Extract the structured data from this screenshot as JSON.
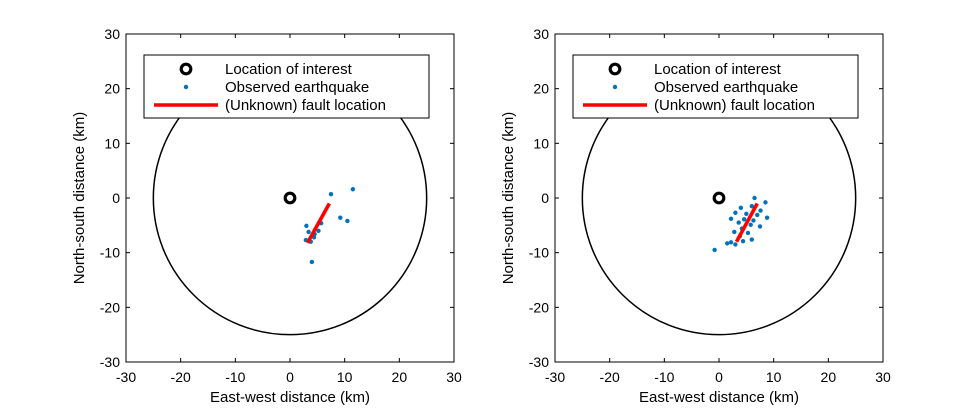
{
  "chart_data": [
    {
      "type": "scatter",
      "xlabel": "East-west distance (km)",
      "ylabel": "North-south distance (km)",
      "xlim": [
        -30,
        30
      ],
      "ylim": [
        -30,
        30
      ],
      "xticks": [
        -30,
        -20,
        -10,
        0,
        10,
        20,
        30
      ],
      "yticks": [
        -30,
        -20,
        -10,
        0,
        10,
        20,
        30
      ],
      "xtick_labels": [
        "-30",
        "-20",
        "-10",
        "0",
        "10",
        "20",
        "30"
      ],
      "ytick_labels": [
        "-30",
        "-20",
        "-10",
        "0",
        "10",
        "20",
        "30"
      ],
      "grid": false,
      "legend_position": "top-left",
      "legend": [
        {
          "label": "Location of interest",
          "marker": "circle-open",
          "color": "#000000"
        },
        {
          "label": "Observed earthquake",
          "marker": "dot",
          "color": "#0072BD"
        },
        {
          "label": "(Unknown) fault location",
          "marker": "line",
          "color": "#ff0000"
        }
      ],
      "region_circle": {
        "center": [
          0,
          0
        ],
        "radius": 25,
        "color": "#000000"
      },
      "location_of_interest": {
        "x": 0,
        "y": 0,
        "color": "#000000"
      },
      "fault": {
        "x1": 3.2,
        "y1": -8.2,
        "x2": 7.2,
        "y2": -1.0,
        "color": "#ff0000"
      },
      "earthquakes": {
        "color": "#0072BD",
        "points": [
          [
            7.5,
            0.7
          ],
          [
            11.5,
            1.6
          ],
          [
            9.2,
            -3.6
          ],
          [
            10.5,
            -4.2
          ],
          [
            3.0,
            -5.1
          ],
          [
            3.4,
            -6.2
          ],
          [
            4.5,
            -6.6
          ],
          [
            5.2,
            -6.0
          ],
          [
            2.9,
            -7.7
          ],
          [
            3.8,
            -8.0
          ],
          [
            4.0,
            -11.7
          ],
          [
            4.4,
            -7.2
          ],
          [
            5.7,
            -4.6
          ]
        ]
      }
    },
    {
      "type": "scatter",
      "xlabel": "East-west distance (km)",
      "ylabel": "North-south distance (km)",
      "xlim": [
        -30,
        30
      ],
      "ylim": [
        -30,
        30
      ],
      "xticks": [
        -30,
        -20,
        -10,
        0,
        10,
        20,
        30
      ],
      "yticks": [
        -30,
        -20,
        -10,
        0,
        10,
        20,
        30
      ],
      "xtick_labels": [
        "-30",
        "-20",
        "-10",
        "0",
        "10",
        "20",
        "30"
      ],
      "ytick_labels": [
        "-30",
        "-20",
        "-10",
        "0",
        "10",
        "20",
        "30"
      ],
      "grid": false,
      "legend_position": "top-left",
      "legend": [
        {
          "label": "Location of interest",
          "marker": "circle-open",
          "color": "#000000"
        },
        {
          "label": "Observed earthquake",
          "marker": "dot",
          "color": "#0072BD"
        },
        {
          "label": "(Unknown) fault location",
          "marker": "line",
          "color": "#ff0000"
        }
      ],
      "region_circle": {
        "center": [
          0,
          0
        ],
        "radius": 25,
        "color": "#000000"
      },
      "location_of_interest": {
        "x": 0,
        "y": 0,
        "color": "#000000"
      },
      "fault": {
        "x1": 3.2,
        "y1": -8.0,
        "x2": 7.0,
        "y2": -1.0,
        "color": "#ff0000"
      },
      "earthquakes": {
        "color": "#0072BD",
        "points": [
          [
            6.5,
            0.0
          ],
          [
            8.5,
            -0.8
          ],
          [
            4.0,
            -1.8
          ],
          [
            6.0,
            -1.5
          ],
          [
            7.6,
            -2.3
          ],
          [
            3.0,
            -2.7
          ],
          [
            5.0,
            -2.9
          ],
          [
            7.0,
            -3.1
          ],
          [
            8.8,
            -3.6
          ],
          [
            2.2,
            -3.8
          ],
          [
            4.6,
            -3.9
          ],
          [
            6.3,
            -4.1
          ],
          [
            3.6,
            -4.5
          ],
          [
            5.8,
            -4.9
          ],
          [
            7.5,
            -5.2
          ],
          [
            4.2,
            -5.6
          ],
          [
            2.8,
            -6.2
          ],
          [
            5.3,
            -6.4
          ],
          [
            3.8,
            -7.0
          ],
          [
            6.0,
            -7.6
          ],
          [
            4.4,
            -7.9
          ],
          [
            2.2,
            -8.1
          ],
          [
            1.5,
            -8.3
          ],
          [
            3.0,
            -8.5
          ],
          [
            -0.8,
            -9.5
          ]
        ]
      }
    }
  ]
}
